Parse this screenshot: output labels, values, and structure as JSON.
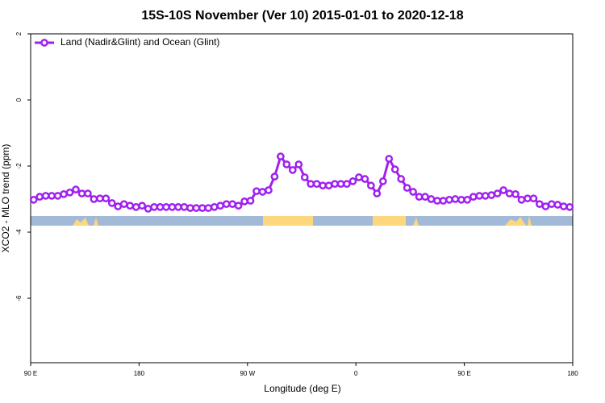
{
  "chart_data": {
    "type": "line",
    "title": "15S-10S November (Ver 10)   2015-01-01 to 2020-12-18",
    "x_label": "Longitude (deg E)",
    "y_label": "XCO2 - MLO trend (ppm)",
    "x": [
      92.5,
      97.5,
      102.5,
      107.5,
      112.5,
      117.5,
      122.5,
      127.5,
      132.5,
      137.5,
      142.5,
      147.5,
      152.5,
      157.5,
      162.5,
      167.5,
      172.5,
      177.5,
      182.5,
      187.5,
      192.5,
      197.5,
      202.5,
      207.5,
      212.5,
      217.5,
      222.5,
      227.5,
      232.5,
      237.5,
      242.5,
      247.5,
      252.5,
      257.5,
      262.5,
      267.5,
      272.5,
      277.5,
      282.5,
      287.5,
      292.5,
      297.5,
      302.5,
      307.5,
      312.5,
      317.5,
      322.5,
      327.5,
      332.5,
      337.5,
      342.5,
      347.5,
      352.5,
      357.5,
      362.5,
      367.5,
      372.5,
      377.5,
      382.5,
      387.5,
      392.5,
      397.5,
      402.5,
      407.5,
      412.5,
      417.5,
      422.5,
      427.5,
      432.5,
      437.5,
      442.5,
      447.5,
      452.5,
      457.5,
      462.5,
      467.5,
      472.5,
      477.5,
      482.5,
      487.5,
      492.5,
      497.5,
      502.5,
      507.5,
      512.5,
      517.5,
      522.5,
      527.5,
      532.5,
      537.5
    ],
    "series": [
      {
        "name": "Land (Nadir&Glint) and Ocean (Glint)",
        "color": "#a020f0",
        "values": [
          -3.02,
          -2.93,
          -2.9,
          -2.9,
          -2.9,
          -2.85,
          -2.8,
          -2.71,
          -2.83,
          -2.83,
          -3.0,
          -2.98,
          -2.98,
          -3.12,
          -3.22,
          -3.15,
          -3.2,
          -3.24,
          -3.2,
          -3.29,
          -3.24,
          -3.24,
          -3.24,
          -3.24,
          -3.24,
          -3.24,
          -3.27,
          -3.27,
          -3.27,
          -3.27,
          -3.24,
          -3.2,
          -3.15,
          -3.15,
          -3.2,
          -3.07,
          -3.05,
          -2.76,
          -2.78,
          -2.73,
          -2.32,
          -1.71,
          -1.95,
          -2.12,
          -1.95,
          -2.34,
          -2.54,
          -2.54,
          -2.59,
          -2.59,
          -2.54,
          -2.54,
          -2.54,
          -2.46,
          -2.34,
          -2.39,
          -2.59,
          -2.83,
          -2.46,
          -1.78,
          -2.1,
          -2.39,
          -2.66,
          -2.78,
          -2.93,
          -2.93,
          -3.0,
          -3.05,
          -3.05,
          -3.02,
          -3.0,
          -3.02,
          -3.02,
          -2.93,
          -2.9,
          -2.9,
          -2.88,
          -2.83,
          -2.73,
          -2.83,
          -2.85,
          -3.02,
          -2.98,
          -2.98,
          -3.15,
          -3.22,
          -3.15,
          -3.17,
          -3.22,
          -3.24
        ]
      }
    ],
    "xlim": [
      90,
      540
    ],
    "xticks": [
      {
        "value": 90,
        "label": "90 E"
      },
      180,
      {
        "value": 270,
        "label": "90 W"
      },
      {
        "value": 360,
        "label": "0"
      },
      {
        "value": 450,
        "label": "90 E"
      },
      {
        "value": 540,
        "label": "180"
      }
    ],
    "ylim": [
      -7.95,
      2
    ],
    "yticks": [
      2,
      0,
      -2,
      -4,
      -6
    ],
    "grid": false,
    "legend": "top-left"
  }
}
